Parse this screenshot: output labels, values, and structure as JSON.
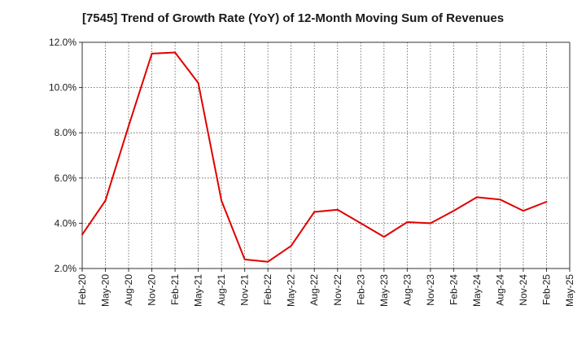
{
  "chart_data": {
    "type": "line",
    "title": "[7545]  Trend of Growth Rate (YoY) of 12-Month Moving Sum of Revenues",
    "xlabel": "",
    "ylabel": "",
    "ylim": [
      2.0,
      12.0
    ],
    "y_ticks": [
      {
        "value": 2.0,
        "label": "2.0%"
      },
      {
        "value": 4.0,
        "label": "4.0%"
      },
      {
        "value": 6.0,
        "label": "6.0%"
      },
      {
        "value": 8.0,
        "label": "8.0%"
      },
      {
        "value": 10.0,
        "label": "10.0%"
      },
      {
        "value": 12.0,
        "label": "12.0%"
      }
    ],
    "x_tick_labels": [
      "Feb-20",
      "May-20",
      "Aug-20",
      "Nov-20",
      "Feb-21",
      "May-21",
      "Aug-21",
      "Nov-21",
      "Feb-22",
      "May-22",
      "Aug-22",
      "Nov-22",
      "Feb-23",
      "May-23",
      "Aug-23",
      "Nov-23",
      "Feb-24",
      "May-24",
      "Aug-24",
      "Nov-24",
      "Feb-25",
      "May-25"
    ],
    "grid": true,
    "series": [
      {
        "color": "#e00000",
        "x": [
          "Feb-20",
          "May-20",
          "Aug-20",
          "Nov-20",
          "Feb-21",
          "May-21",
          "Aug-21",
          "Nov-21",
          "Feb-22",
          "May-22",
          "Aug-22",
          "Nov-22",
          "Feb-23",
          "May-23",
          "Aug-23",
          "Nov-23",
          "Feb-24",
          "May-24",
          "Aug-24",
          "Nov-24",
          "Feb-25"
        ],
        "values": [
          3.5,
          5.0,
          8.3,
          11.5,
          11.55,
          10.2,
          5.0,
          2.4,
          2.3,
          3.0,
          4.5,
          4.6,
          4.0,
          3.4,
          4.05,
          4.0,
          4.55,
          5.15,
          5.05,
          4.55,
          4.95
        ]
      }
    ]
  }
}
